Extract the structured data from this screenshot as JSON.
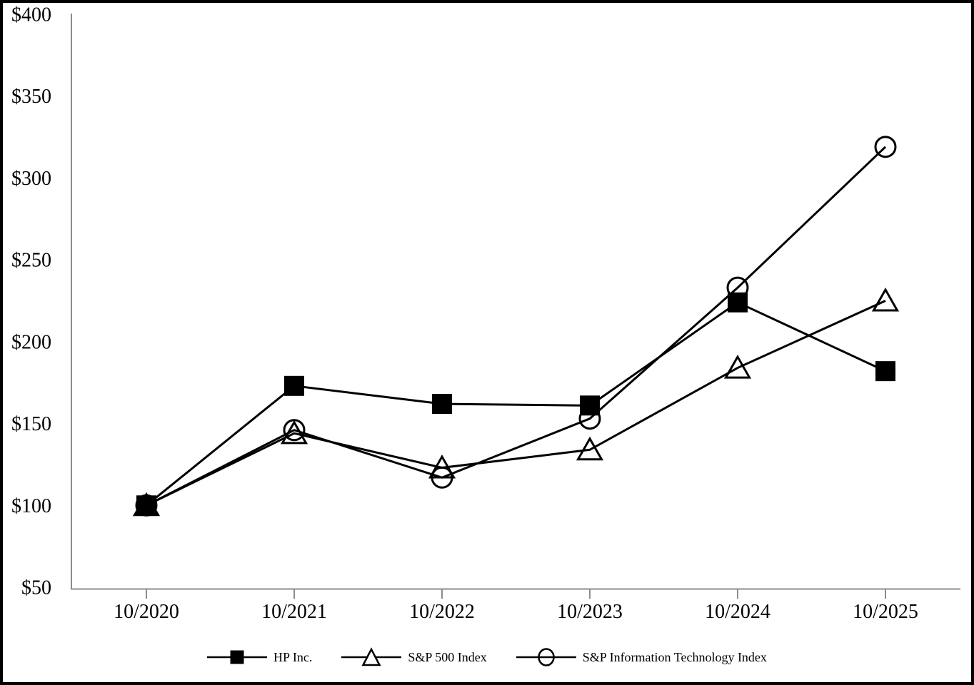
{
  "chart_data": {
    "type": "line",
    "title": "",
    "xlabel": "",
    "ylabel": "",
    "grid": false,
    "legend_position": "bottom",
    "categories": [
      "10/2020",
      "10/2021",
      "10/2022",
      "10/2023",
      "10/2024",
      "10/2025"
    ],
    "series": [
      {
        "name": "HP Inc.",
        "marker": "filled-square",
        "values": [
          100,
          173,
          162,
          161,
          224,
          182
        ]
      },
      {
        "name": "S&P 500 Index",
        "marker": "open-triangle",
        "values": [
          100,
          144,
          123,
          134,
          184,
          225
        ]
      },
      {
        "name": "S&P Information Technology Index",
        "marker": "open-circle",
        "values": [
          100,
          146,
          117,
          153,
          233,
          319
        ]
      }
    ],
    "y_ticks": [
      {
        "value": 50,
        "label": "$50"
      },
      {
        "value": 100,
        "label": "$100"
      },
      {
        "value": 150,
        "label": "$150"
      },
      {
        "value": 200,
        "label": "$200"
      },
      {
        "value": 250,
        "label": "$250"
      },
      {
        "value": 300,
        "label": "$300"
      },
      {
        "value": 350,
        "label": "$350"
      },
      {
        "value": 400,
        "label": "$400"
      }
    ],
    "ylim": [
      50,
      400
    ],
    "colors": {
      "series_line": "#000000",
      "axis_line": "#8c8c8c",
      "background": "#ffffff",
      "border": "#000000"
    }
  }
}
